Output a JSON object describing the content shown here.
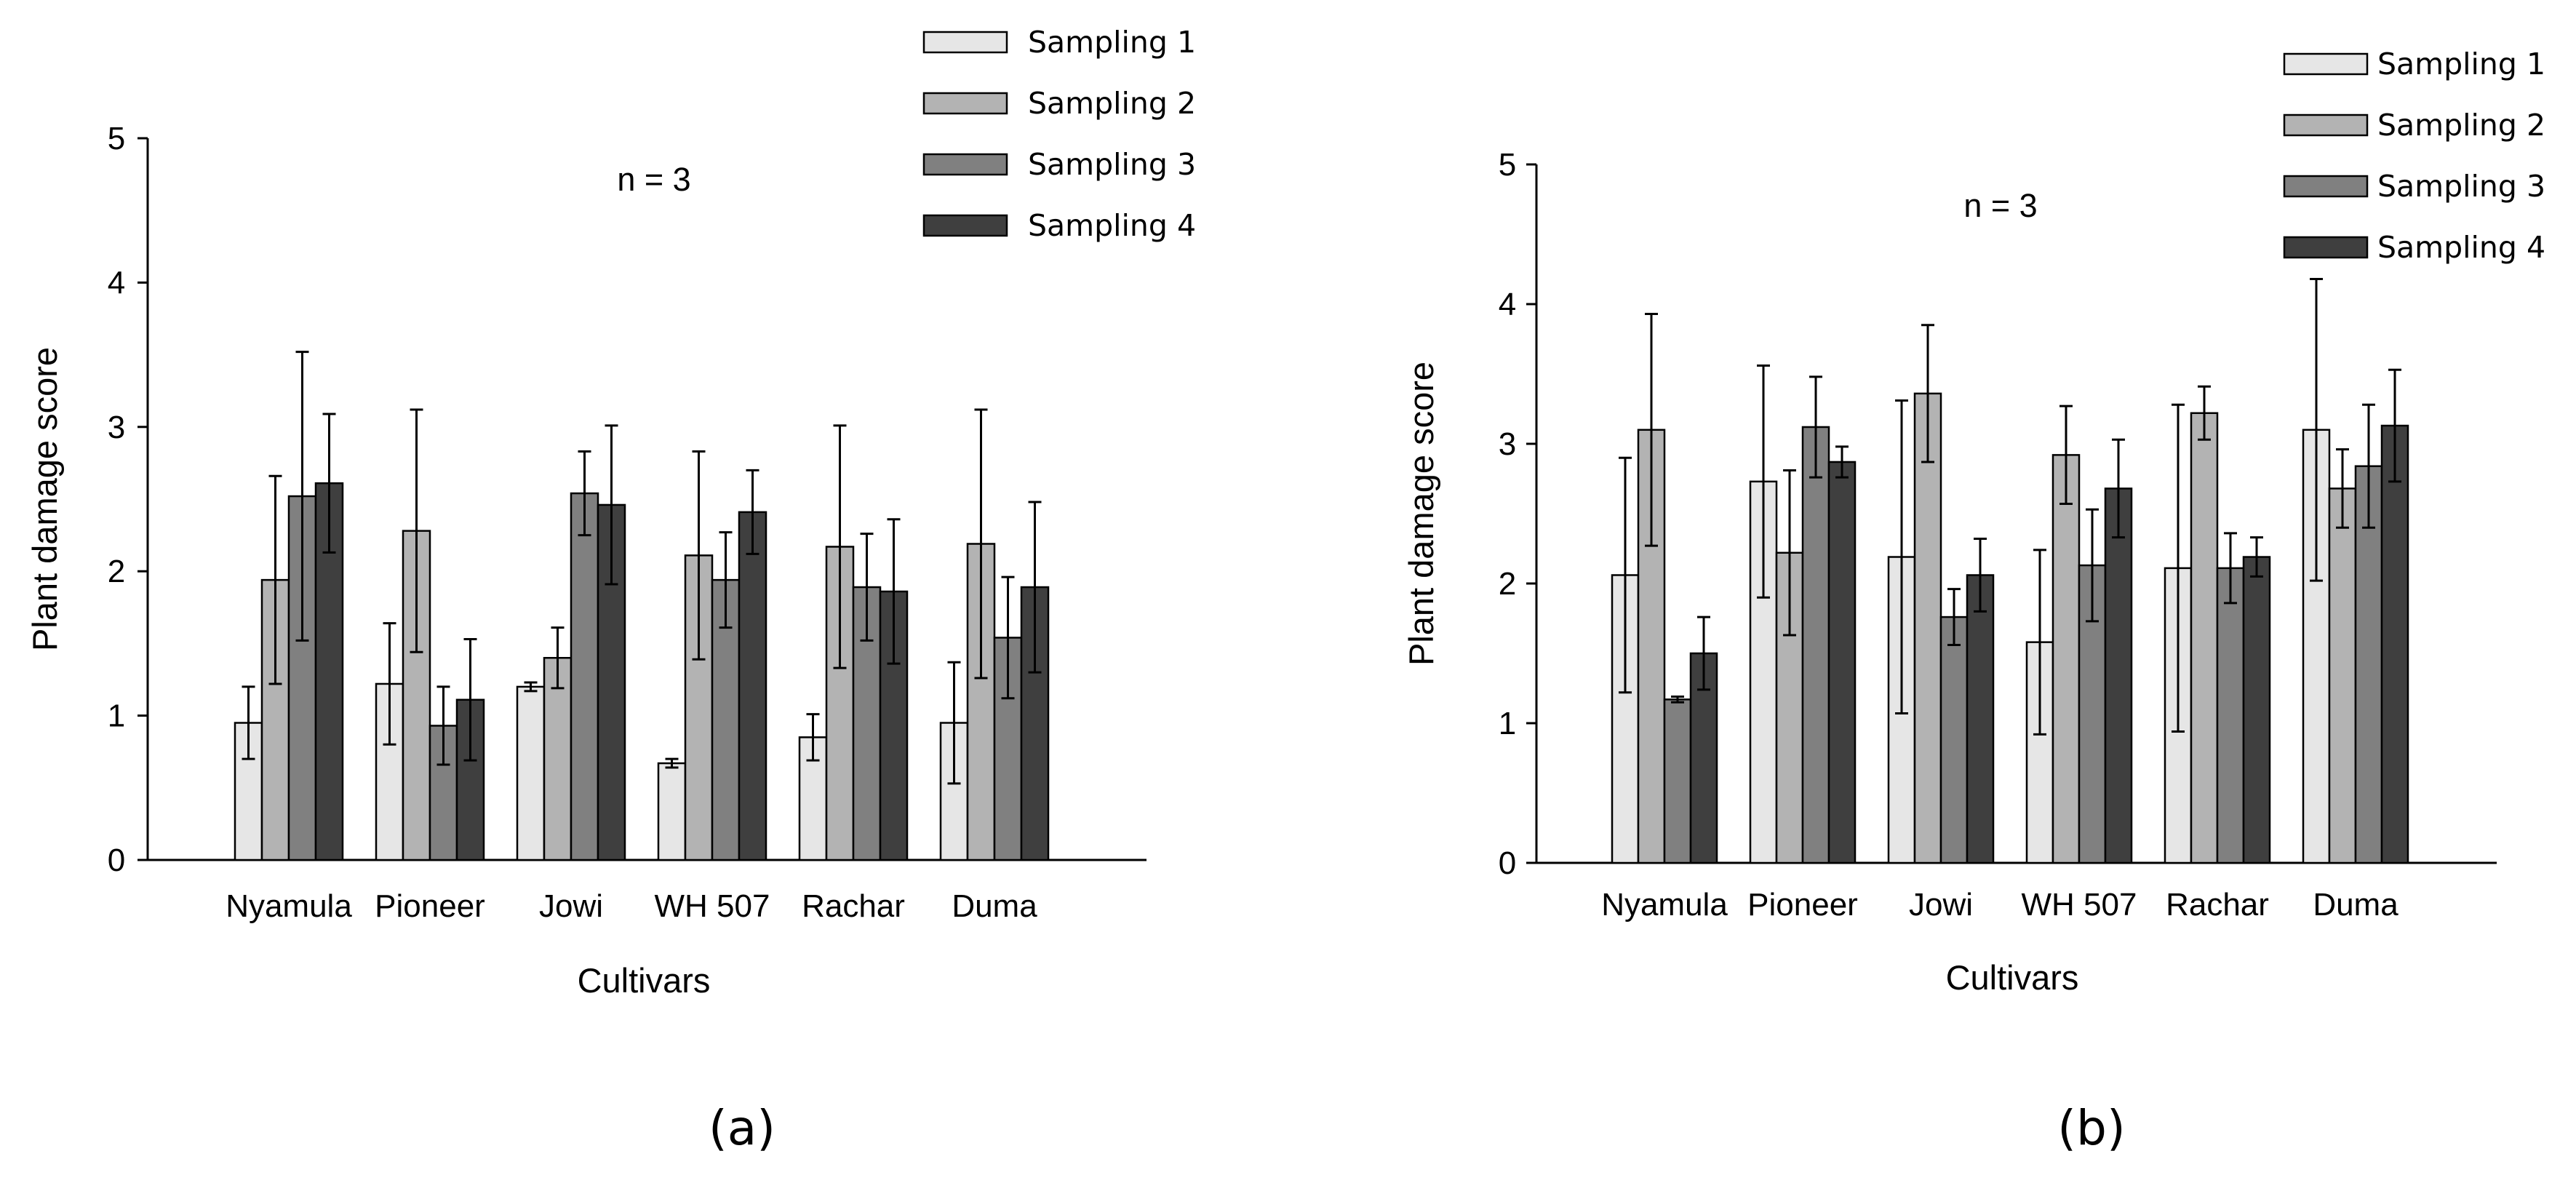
{
  "chart_data": [
    {
      "type": "bar",
      "panel_label": "(a)",
      "annotation": "n = 3",
      "xlabel": "Cultivars",
      "ylabel": "Plant damage score",
      "ylim": [
        0,
        5
      ],
      "yticks": [
        "0",
        "1",
        "2",
        "3",
        "4",
        "5"
      ],
      "legend_position": "top-right",
      "categories": [
        "Nyamula",
        "Pioneer",
        "Jowi",
        "WH 507",
        "Rachar",
        "Duma"
      ],
      "series": [
        {
          "name": "Sampling 1",
          "color": "#e6e6e6",
          "values": [
            0.95,
            1.22,
            1.2,
            0.67,
            0.85,
            0.95
          ],
          "errors": [
            0.25,
            0.42,
            0.03,
            0.03,
            0.16,
            0.42
          ]
        },
        {
          "name": "Sampling 2",
          "color": "#b3b3b3",
          "values": [
            1.94,
            2.28,
            1.4,
            2.11,
            2.17,
            2.19
          ],
          "errors": [
            0.72,
            0.84,
            0.21,
            0.72,
            0.84,
            0.93
          ]
        },
        {
          "name": "Sampling 3",
          "color": "#808080",
          "values": [
            2.52,
            0.93,
            2.54,
            1.94,
            1.89,
            1.54
          ],
          "errors": [
            1.0,
            0.27,
            0.29,
            0.33,
            0.37,
            0.42
          ]
        },
        {
          "name": "Sampling 4",
          "color": "#3f3f3f",
          "values": [
            2.61,
            1.11,
            2.46,
            2.41,
            1.86,
            1.89
          ],
          "errors": [
            0.48,
            0.42,
            0.55,
            0.29,
            0.5,
            0.59
          ]
        }
      ]
    },
    {
      "type": "bar",
      "panel_label": "(b)",
      "annotation": "n = 3",
      "xlabel": "Cultivars",
      "ylabel": "Plant damage score",
      "ylim": [
        0,
        5
      ],
      "yticks": [
        "0",
        "1",
        "2",
        "3",
        "4",
        "5"
      ],
      "legend_position": "top-right",
      "categories": [
        "Nyamula",
        "Pioneer",
        "Jowi",
        "WH 507",
        "Rachar",
        "Duma"
      ],
      "series": [
        {
          "name": "Sampling 1",
          "color": "#e6e6e6",
          "values": [
            2.06,
            2.73,
            2.19,
            1.58,
            2.11,
            3.1
          ],
          "errors": [
            0.84,
            0.83,
            1.12,
            0.66,
            1.17,
            1.08
          ]
        },
        {
          "name": "Sampling 2",
          "color": "#b3b3b3",
          "values": [
            3.1,
            2.22,
            3.36,
            2.92,
            3.22,
            2.68
          ],
          "errors": [
            0.83,
            0.59,
            0.49,
            0.35,
            0.19,
            0.28
          ]
        },
        {
          "name": "Sampling 3",
          "color": "#808080",
          "values": [
            1.17,
            3.12,
            1.76,
            2.13,
            2.11,
            2.84
          ],
          "errors": [
            0.02,
            0.36,
            0.2,
            0.4,
            0.25,
            0.44
          ]
        },
        {
          "name": "Sampling 4",
          "color": "#3f3f3f",
          "values": [
            1.5,
            2.87,
            2.06,
            2.68,
            2.19,
            3.13
          ],
          "errors": [
            0.26,
            0.11,
            0.26,
            0.35,
            0.14,
            0.4
          ]
        }
      ]
    }
  ]
}
